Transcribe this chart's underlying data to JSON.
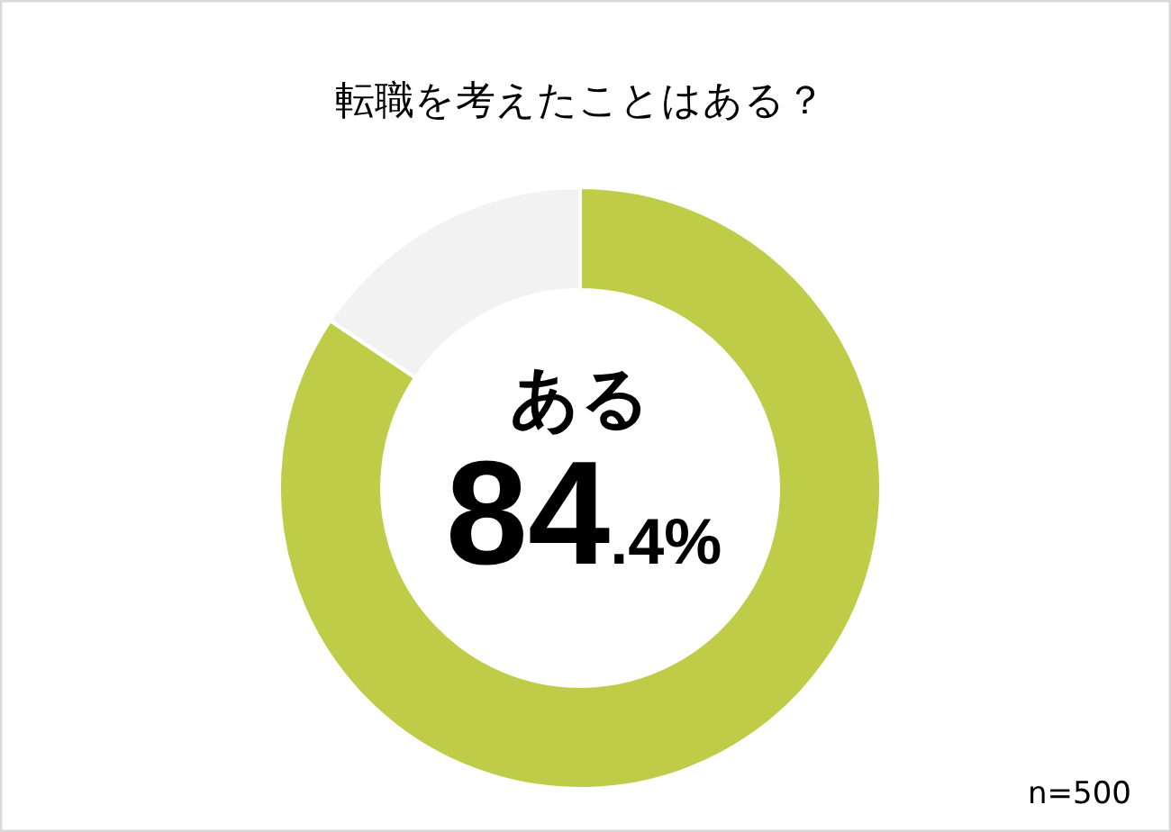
{
  "chart_data": {
    "type": "donut",
    "title": "転職を考えたことはある？",
    "categories": [
      "ある",
      null
    ],
    "values": [
      84.4,
      15.6
    ],
    "colors": [
      "#bfcc47",
      "#f2f2f2"
    ],
    "value_labels": [
      "84.4%",
      null
    ],
    "annotations": [
      "n=500"
    ]
  }
}
